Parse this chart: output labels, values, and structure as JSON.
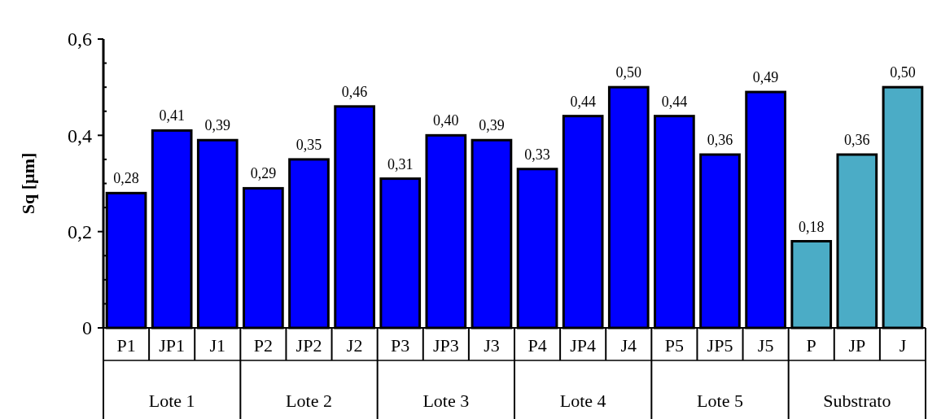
{
  "chart_data": {
    "type": "bar",
    "ylabel": "Sq [µm]",
    "categories": [
      "P1",
      "JP1",
      "J1",
      "P2",
      "JP2",
      "J2",
      "P3",
      "JP3",
      "J3",
      "P4",
      "JP4",
      "J4",
      "P5",
      "JP5",
      "J5",
      "P",
      "JP",
      "J"
    ],
    "values": [
      0.28,
      0.41,
      0.39,
      0.29,
      0.35,
      0.46,
      0.31,
      0.4,
      0.39,
      0.33,
      0.44,
      0.5,
      0.44,
      0.36,
      0.49,
      0.18,
      0.36,
      0.5
    ],
    "value_labels": [
      "0,28",
      "0,41",
      "0,39",
      "0,29",
      "0,35",
      "0,46",
      "0,31",
      "0,40",
      "0,39",
      "0,33",
      "0,44",
      "0,50",
      "0,44",
      "0,36",
      "0,49",
      "0,18",
      "0,36",
      "0,50"
    ],
    "colors": [
      "#0000ff",
      "#0000ff",
      "#0000ff",
      "#0000ff",
      "#0000ff",
      "#0000ff",
      "#0000ff",
      "#0000ff",
      "#0000ff",
      "#0000ff",
      "#0000ff",
      "#0000ff",
      "#0000ff",
      "#0000ff",
      "#0000ff",
      "#4bacc6",
      "#4bacc6",
      "#4bacc6"
    ],
    "annotations": [
      "Lote 1",
      "Lote 2",
      "Lote 3",
      "Lote 4",
      "Lote 5",
      "Substrato"
    ],
    "ylim": [
      0,
      0.6
    ],
    "yticks": [
      {
        "value": 0,
        "label": "0"
      },
      {
        "value": 0.05,
        "label": null
      },
      {
        "value": 0.1,
        "label": null
      },
      {
        "value": 0.15,
        "label": null
      },
      {
        "value": 0.2,
        "label": "0,2"
      },
      {
        "value": 0.25,
        "label": null
      },
      {
        "value": 0.3,
        "label": null
      },
      {
        "value": 0.35,
        "label": null
      },
      {
        "value": 0.4,
        "label": "0,4"
      },
      {
        "value": 0.45,
        "label": null
      },
      {
        "value": 0.5,
        "label": null
      },
      {
        "value": 0.55,
        "label": null
      },
      {
        "value": 0.6,
        "label": "0,6"
      }
    ],
    "grid": false
  }
}
